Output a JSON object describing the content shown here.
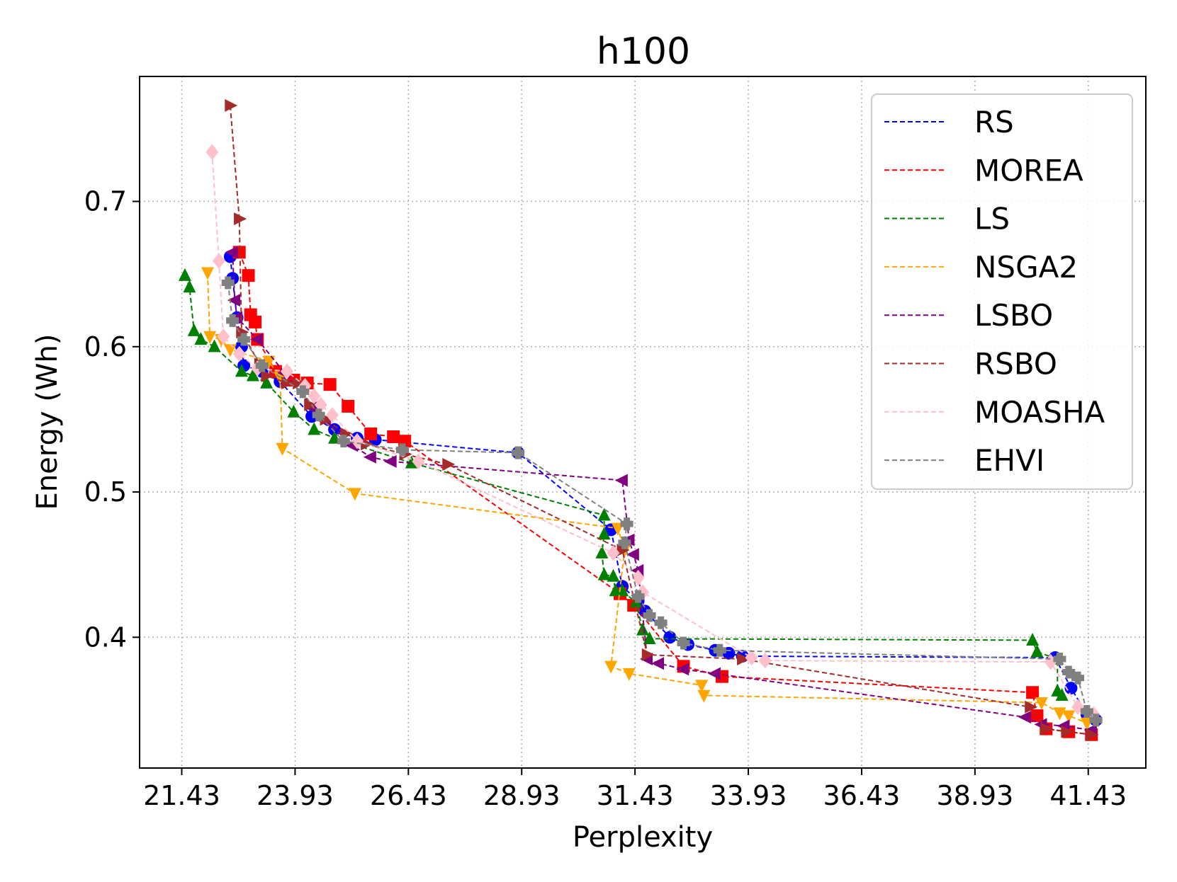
{
  "chart_data": {
    "type": "line",
    "title": "h100",
    "xlabel": "Perplexity",
    "ylabel": "Energy (Wh)",
    "xlim": [
      20.5,
      42.7
    ],
    "ylim": [
      0.31,
      0.786
    ],
    "xticks": [
      21.43,
      23.93,
      26.43,
      28.93,
      31.43,
      33.93,
      36.43,
      38.93,
      41.43
    ],
    "xtick_labels": [
      "21.43",
      "23.93",
      "26.43",
      "28.93",
      "31.43",
      "33.93",
      "36.43",
      "38.93",
      "41.43"
    ],
    "yticks": [
      0.4,
      0.5,
      0.6,
      0.7
    ],
    "ytick_labels": [
      "0.4",
      "0.5",
      "0.6",
      "0.7"
    ],
    "grid": true,
    "legend_position": "top-right",
    "series": [
      {
        "name": "RS",
        "color": "#0000ff",
        "marker": "circle",
        "points": [
          [
            22.5,
            0.662
          ],
          [
            22.55,
            0.647
          ],
          [
            22.65,
            0.62
          ],
          [
            22.75,
            0.6
          ],
          [
            22.8,
            0.587
          ],
          [
            23.2,
            0.583
          ],
          [
            23.6,
            0.576
          ],
          [
            24.3,
            0.552
          ],
          [
            24.8,
            0.543
          ],
          [
            25.3,
            0.537
          ],
          [
            25.7,
            0.536
          ],
          [
            28.85,
            0.527
          ],
          [
            30.9,
            0.474
          ],
          [
            31.15,
            0.435
          ],
          [
            31.5,
            0.425
          ],
          [
            31.65,
            0.418
          ],
          [
            32.2,
            0.4
          ],
          [
            32.6,
            0.395
          ],
          [
            33.2,
            0.391
          ],
          [
            33.5,
            0.389
          ],
          [
            33.8,
            0.387
          ],
          [
            40.7,
            0.386
          ],
          [
            41.05,
            0.365
          ],
          [
            41.4,
            0.347
          ],
          [
            41.6,
            0.343
          ]
        ]
      },
      {
        "name": "MOREA",
        "color": "#ff0000",
        "marker": "square",
        "points": [
          [
            22.7,
            0.665
          ],
          [
            22.9,
            0.649
          ],
          [
            22.95,
            0.622
          ],
          [
            23.05,
            0.617
          ],
          [
            23.1,
            0.605
          ],
          [
            23.5,
            0.583
          ],
          [
            23.9,
            0.577
          ],
          [
            24.2,
            0.575
          ],
          [
            24.7,
            0.574
          ],
          [
            25.1,
            0.559
          ],
          [
            25.6,
            0.54
          ],
          [
            26.1,
            0.538
          ],
          [
            26.35,
            0.535
          ],
          [
            31.1,
            0.43
          ],
          [
            31.4,
            0.422
          ],
          [
            32.5,
            0.38
          ],
          [
            33.35,
            0.373
          ],
          [
            40.2,
            0.362
          ],
          [
            40.3,
            0.346
          ],
          [
            40.5,
            0.337
          ],
          [
            41.0,
            0.335
          ],
          [
            41.5,
            0.333
          ]
        ]
      },
      {
        "name": "LS",
        "color": "#008000",
        "marker": "triangle-up",
        "points": [
          [
            21.5,
            0.649
          ],
          [
            21.6,
            0.641
          ],
          [
            21.7,
            0.611
          ],
          [
            21.85,
            0.605
          ],
          [
            22.15,
            0.6
          ],
          [
            22.75,
            0.583
          ],
          [
            23.0,
            0.58
          ],
          [
            23.3,
            0.575
          ],
          [
            23.9,
            0.555
          ],
          [
            24.35,
            0.543
          ],
          [
            24.8,
            0.537
          ],
          [
            26.5,
            0.52
          ],
          [
            30.75,
            0.484
          ],
          [
            30.75,
            0.471
          ],
          [
            30.7,
            0.458
          ],
          [
            30.75,
            0.443
          ],
          [
            30.95,
            0.442
          ],
          [
            31.0,
            0.432
          ],
          [
            31.15,
            0.432
          ],
          [
            31.45,
            0.424
          ],
          [
            31.6,
            0.405
          ],
          [
            31.75,
            0.399
          ],
          [
            40.2,
            0.398
          ],
          [
            40.3,
            0.39
          ],
          [
            40.75,
            0.385
          ],
          [
            40.75,
            0.363
          ],
          [
            40.85,
            0.36
          ]
        ]
      },
      {
        "name": "NSGA2",
        "color": "#ffa500",
        "marker": "triangle-down",
        "points": [
          [
            22.0,
            0.651
          ],
          [
            22.05,
            0.607
          ],
          [
            22.3,
            0.605
          ],
          [
            22.5,
            0.598
          ],
          [
            23.35,
            0.59
          ],
          [
            23.6,
            0.579
          ],
          [
            23.65,
            0.53
          ],
          [
            25.25,
            0.499
          ],
          [
            31.05,
            0.475
          ],
          [
            31.2,
            0.46
          ],
          [
            30.9,
            0.38
          ],
          [
            31.3,
            0.375
          ],
          [
            32.9,
            0.367
          ],
          [
            32.95,
            0.36
          ],
          [
            40.4,
            0.355
          ],
          [
            40.8,
            0.348
          ],
          [
            41.0,
            0.346
          ],
          [
            41.4,
            0.341
          ]
        ]
      },
      {
        "name": "LSBO",
        "color": "#800080",
        "marker": "triangle-left",
        "points": [
          [
            22.55,
            0.665
          ],
          [
            22.6,
            0.632
          ],
          [
            22.65,
            0.62
          ],
          [
            23.1,
            0.605
          ],
          [
            23.7,
            0.582
          ],
          [
            24.3,
            0.558
          ],
          [
            24.6,
            0.549
          ],
          [
            25.2,
            0.532
          ],
          [
            25.6,
            0.524
          ],
          [
            26.05,
            0.521
          ],
          [
            31.15,
            0.508
          ],
          [
            31.3,
            0.467
          ],
          [
            31.4,
            0.457
          ],
          [
            31.5,
            0.446
          ],
          [
            31.7,
            0.385
          ],
          [
            31.95,
            0.382
          ],
          [
            32.5,
            0.378
          ],
          [
            33.2,
            0.375
          ],
          [
            40.05,
            0.345
          ],
          [
            40.4,
            0.34
          ],
          [
            40.9,
            0.339
          ],
          [
            41.5,
            0.336
          ]
        ]
      },
      {
        "name": "RSBO",
        "color": "#a52a2a",
        "marker": "triangle-right",
        "points": [
          [
            22.5,
            0.766
          ],
          [
            22.7,
            0.688
          ],
          [
            22.75,
            0.61
          ],
          [
            23.15,
            0.588
          ],
          [
            23.3,
            0.58
          ],
          [
            23.75,
            0.575
          ],
          [
            24.0,
            0.575
          ],
          [
            24.25,
            0.56
          ],
          [
            24.6,
            0.55
          ],
          [
            25.05,
            0.54
          ],
          [
            25.5,
            0.533
          ],
          [
            26.35,
            0.526
          ],
          [
            27.3,
            0.519
          ],
          [
            31.15,
            0.46
          ],
          [
            31.7,
            0.388
          ],
          [
            33.8,
            0.385
          ],
          [
            40.15,
            0.352
          ],
          [
            40.5,
            0.337
          ],
          [
            40.95,
            0.335
          ],
          [
            41.5,
            0.333
          ]
        ]
      },
      {
        "name": "MOASHA",
        "color": "#ffc0cb",
        "marker": "diamond",
        "points": [
          [
            22.1,
            0.734
          ],
          [
            22.25,
            0.659
          ],
          [
            22.35,
            0.607
          ],
          [
            22.7,
            0.595
          ],
          [
            23.1,
            0.585
          ],
          [
            23.75,
            0.583
          ],
          [
            24.15,
            0.573
          ],
          [
            24.35,
            0.566
          ],
          [
            24.5,
            0.56
          ],
          [
            24.75,
            0.553
          ],
          [
            25.3,
            0.535
          ],
          [
            26.65,
            0.521
          ],
          [
            30.95,
            0.458
          ],
          [
            31.5,
            0.441
          ],
          [
            31.6,
            0.431
          ],
          [
            34.0,
            0.386
          ],
          [
            34.3,
            0.384
          ],
          [
            40.6,
            0.383
          ],
          [
            41.2,
            0.352
          ],
          [
            41.55,
            0.347
          ]
        ]
      },
      {
        "name": "EHVI",
        "color": "#808080",
        "marker": "plus",
        "points": [
          [
            22.45,
            0.644
          ],
          [
            22.55,
            0.618
          ],
          [
            22.8,
            0.605
          ],
          [
            23.2,
            0.587
          ],
          [
            24.1,
            0.569
          ],
          [
            24.45,
            0.553
          ],
          [
            25.0,
            0.535
          ],
          [
            26.3,
            0.529
          ],
          [
            28.85,
            0.527
          ],
          [
            31.25,
            0.478
          ],
          [
            31.2,
            0.465
          ],
          [
            31.5,
            0.428
          ],
          [
            31.75,
            0.415
          ],
          [
            32.0,
            0.41
          ],
          [
            32.5,
            0.396
          ],
          [
            33.3,
            0.391
          ],
          [
            40.8,
            0.385
          ],
          [
            41.0,
            0.376
          ],
          [
            41.2,
            0.372
          ],
          [
            41.4,
            0.349
          ],
          [
            41.6,
            0.343
          ]
        ]
      }
    ]
  }
}
